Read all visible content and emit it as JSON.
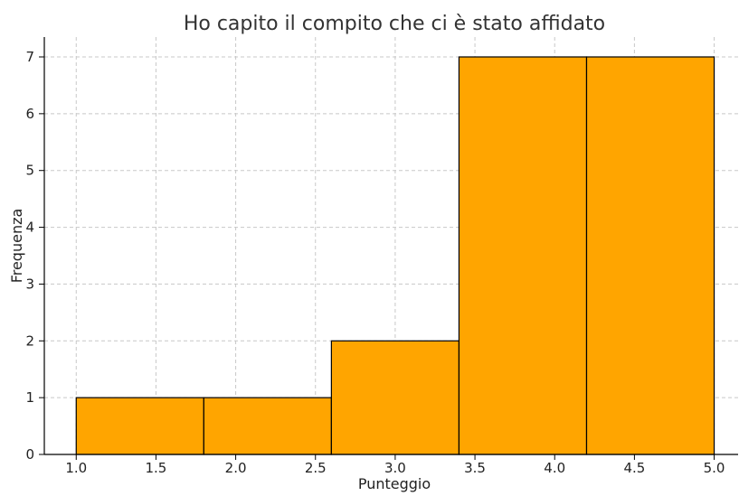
{
  "chart_data": {
    "type": "bar",
    "title": "Ho capito il compito che ci è stato affidato",
    "xlabel": "Punteggio",
    "ylabel": "Frequenza",
    "xlim": [
      0.8,
      5.15
    ],
    "ylim": [
      0,
      7.35
    ],
    "xticks": [
      "1.0",
      "1.5",
      "2.0",
      "2.5",
      "3.0",
      "3.5",
      "4.0",
      "4.5",
      "5.0"
    ],
    "yticks": [
      "0",
      "1",
      "2",
      "3",
      "4",
      "5",
      "6",
      "7"
    ],
    "bins": [
      {
        "start": 1.0,
        "end": 1.8,
        "value": 1
      },
      {
        "start": 1.8,
        "end": 2.6,
        "value": 1
      },
      {
        "start": 2.6,
        "end": 3.4,
        "value": 2
      },
      {
        "start": 3.4,
        "end": 4.2,
        "value": 7
      },
      {
        "start": 4.2,
        "end": 5.0,
        "value": 7
      }
    ],
    "bar_color": "#FFA500",
    "grid": true,
    "legend": "none"
  }
}
